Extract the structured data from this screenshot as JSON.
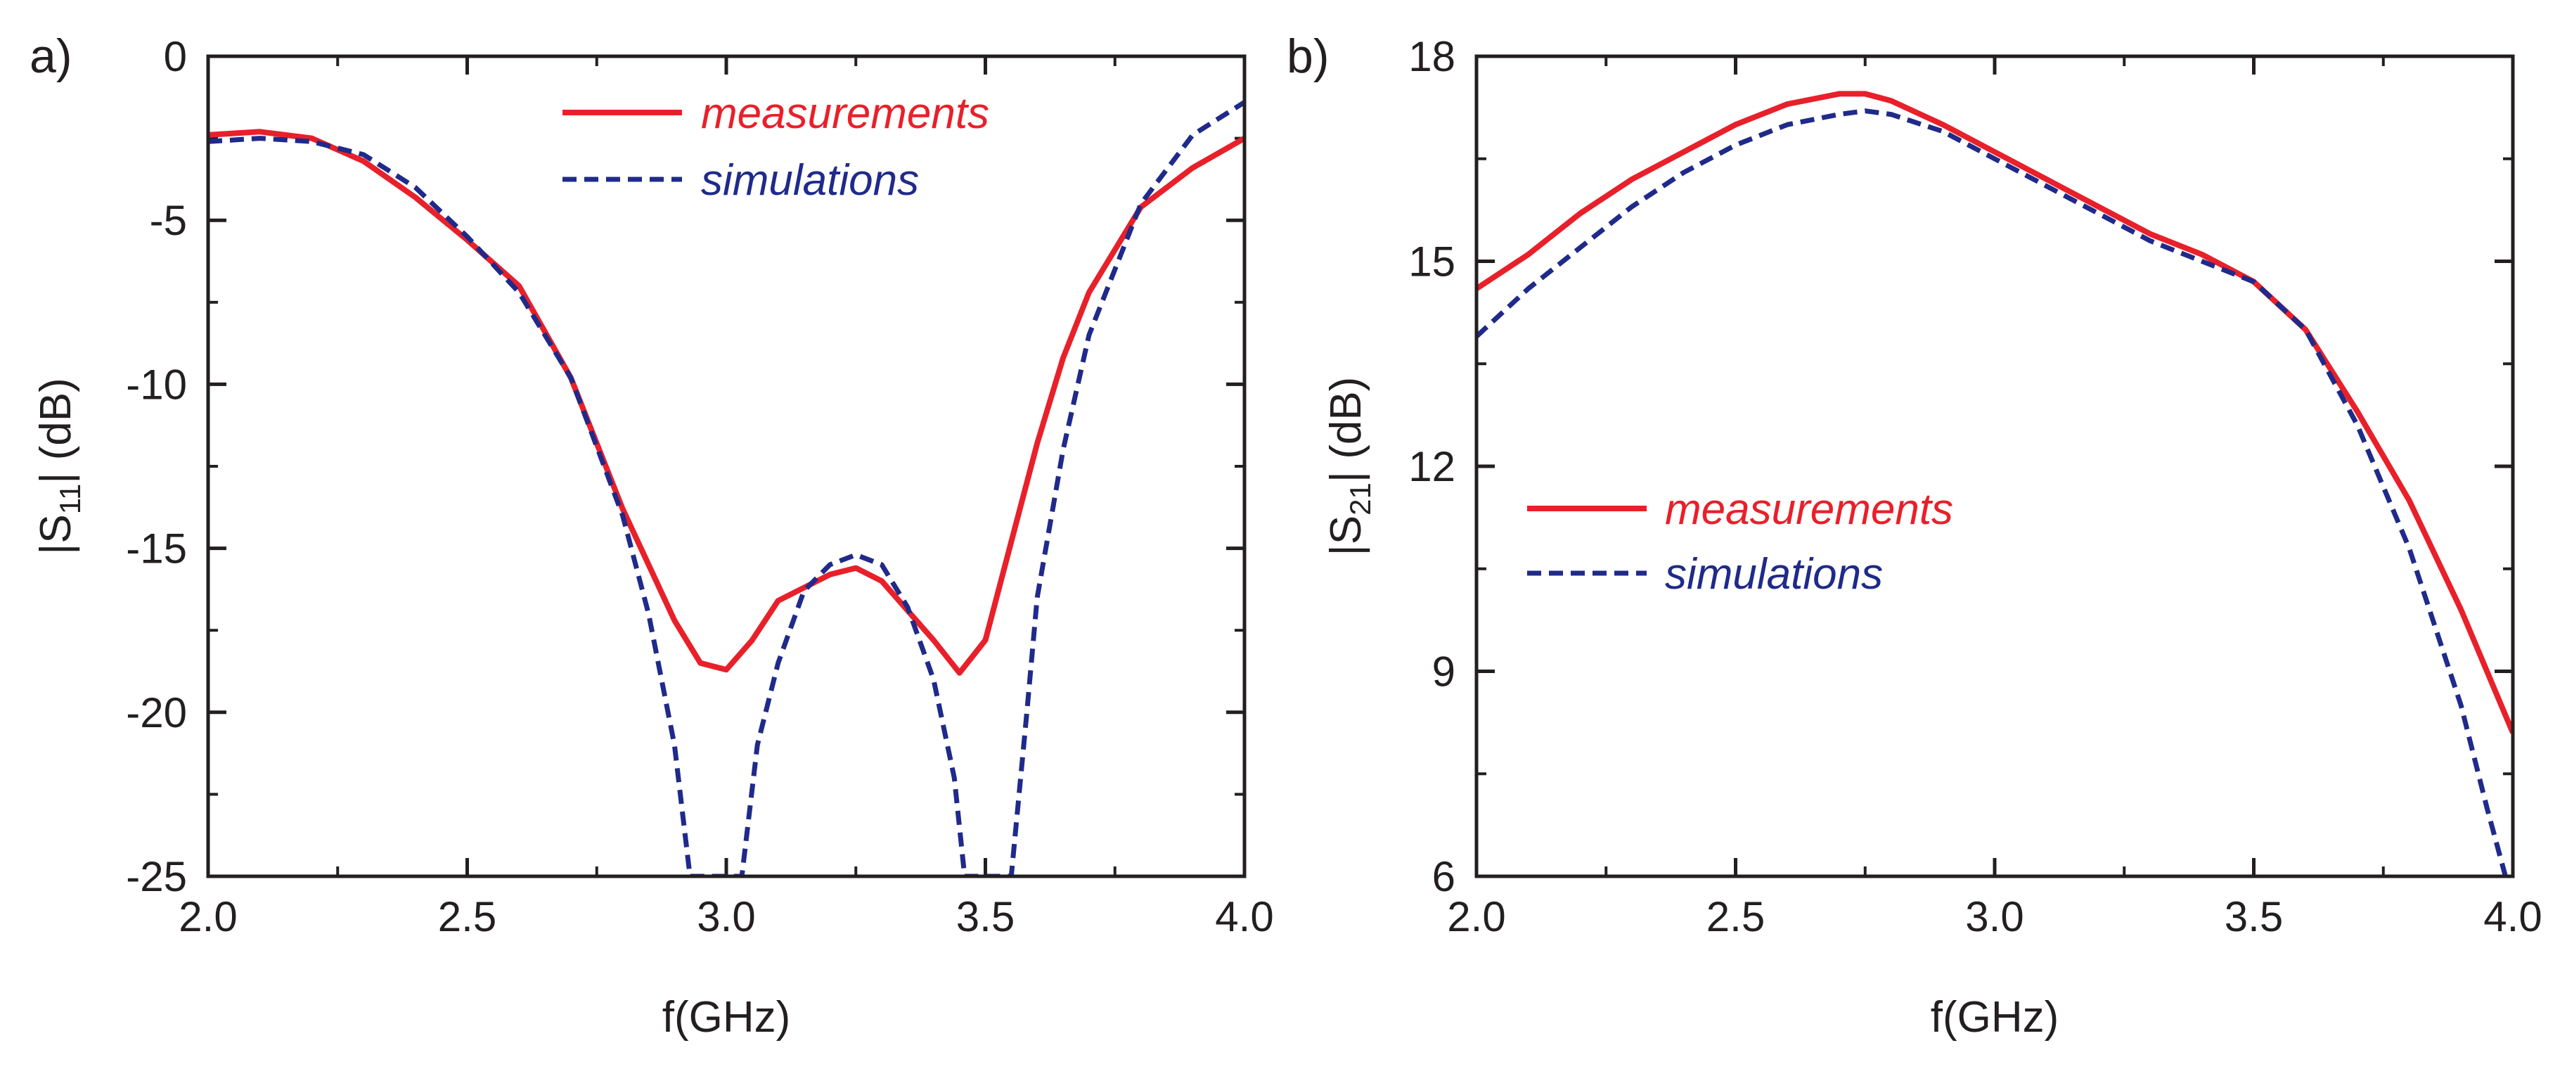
{
  "figure": {
    "colors": {
      "measurements": "#e8202a",
      "simulations": "#1f2a8a",
      "axis": "#231f20"
    }
  },
  "chart_data": [
    {
      "type": "line",
      "panel_label": "a)",
      "xlabel": "f(GHz)",
      "ylabel": {
        "prefix": "|S",
        "subscript": "11",
        "suffix": "| (dB)"
      },
      "xlim": [
        2.0,
        4.0
      ],
      "ylim": [
        -25,
        0
      ],
      "xticks": [
        2.0,
        2.5,
        3.0,
        3.5,
        4.0
      ],
      "xtick_labels": [
        "2.0",
        "2.5",
        "3.0",
        "3.5",
        "4.0"
      ],
      "yticks": [
        0,
        -5,
        -10,
        -15,
        -20,
        -25
      ],
      "ytick_labels": [
        "0",
        "-5",
        "-10",
        "-15",
        "-20",
        "-25"
      ],
      "legend_position": "top-center",
      "series": [
        {
          "name": "measurements",
          "style": "solid",
          "x": [
            2.0,
            2.1,
            2.2,
            2.3,
            2.4,
            2.5,
            2.6,
            2.7,
            2.8,
            2.9,
            2.95,
            3.0,
            3.05,
            3.1,
            3.2,
            3.25,
            3.3,
            3.4,
            3.45,
            3.5,
            3.55,
            3.6,
            3.65,
            3.7,
            3.8,
            3.9,
            4.0
          ],
          "values": [
            -2.4,
            -2.3,
            -2.5,
            -3.2,
            -4.3,
            -5.6,
            -7.0,
            -9.8,
            -13.8,
            -17.2,
            -18.5,
            -18.7,
            -17.8,
            -16.6,
            -15.8,
            -15.6,
            -16.0,
            -17.8,
            -18.8,
            -17.8,
            -14.8,
            -11.8,
            -9.2,
            -7.2,
            -4.6,
            -3.4,
            -2.5
          ]
        },
        {
          "name": "simulations",
          "style": "dashed",
          "x": [
            2.0,
            2.1,
            2.2,
            2.3,
            2.4,
            2.5,
            2.6,
            2.7,
            2.8,
            2.85,
            2.9,
            2.93,
            3.03,
            3.06,
            3.1,
            3.15,
            3.2,
            3.25,
            3.3,
            3.35,
            3.4,
            3.44,
            3.46,
            3.55,
            3.58,
            3.6,
            3.65,
            3.7,
            3.8,
            3.9,
            4.0
          ],
          "values": [
            -2.6,
            -2.5,
            -2.6,
            -3.0,
            -4.0,
            -5.5,
            -7.2,
            -9.8,
            -14.0,
            -17.0,
            -21.0,
            -25.0,
            -25.0,
            -21.0,
            -18.5,
            -16.3,
            -15.5,
            -15.2,
            -15.5,
            -16.8,
            -19.0,
            -22.0,
            -25.0,
            -25.0,
            -20.0,
            -16.5,
            -12.0,
            -8.5,
            -4.5,
            -2.4,
            -1.4
          ]
        }
      ]
    },
    {
      "type": "line",
      "panel_label": "b)",
      "xlabel": "f(GHz)",
      "ylabel": {
        "prefix": "|S",
        "subscript": "21",
        "suffix": "| (dB)"
      },
      "xlim": [
        2.0,
        4.0
      ],
      "ylim": [
        6,
        18
      ],
      "xticks": [
        2.0,
        2.5,
        3.0,
        3.5,
        4.0
      ],
      "xtick_labels": [
        "2.0",
        "2.5",
        "3.0",
        "3.5",
        "4.0"
      ],
      "yticks": [
        18,
        15,
        12,
        9,
        6
      ],
      "ytick_labels": [
        "18",
        "15",
        "12",
        "9",
        "6"
      ],
      "legend_position": "center-left",
      "series": [
        {
          "name": "measurements",
          "style": "solid",
          "x": [
            2.0,
            2.1,
            2.2,
            2.3,
            2.4,
            2.5,
            2.6,
            2.7,
            2.75,
            2.8,
            2.9,
            3.0,
            3.1,
            3.2,
            3.3,
            3.4,
            3.5,
            3.6,
            3.7,
            3.8,
            3.9,
            4.0
          ],
          "values": [
            14.6,
            15.1,
            15.7,
            16.2,
            16.6,
            17.0,
            17.3,
            17.45,
            17.45,
            17.35,
            17.0,
            16.6,
            16.2,
            15.8,
            15.4,
            15.1,
            14.7,
            14.0,
            12.8,
            11.5,
            9.9,
            8.1
          ]
        },
        {
          "name": "simulations",
          "style": "dashed",
          "x": [
            2.0,
            2.1,
            2.2,
            2.3,
            2.4,
            2.5,
            2.6,
            2.7,
            2.75,
            2.8,
            2.9,
            3.0,
            3.1,
            3.2,
            3.3,
            3.4,
            3.5,
            3.6,
            3.7,
            3.8,
            3.9,
            3.95,
            4.0
          ],
          "values": [
            13.9,
            14.6,
            15.2,
            15.8,
            16.3,
            16.7,
            17.0,
            17.15,
            17.2,
            17.15,
            16.9,
            16.5,
            16.1,
            15.7,
            15.3,
            15.0,
            14.7,
            14.0,
            12.6,
            10.8,
            8.5,
            7.0,
            5.6
          ]
        }
      ]
    }
  ]
}
